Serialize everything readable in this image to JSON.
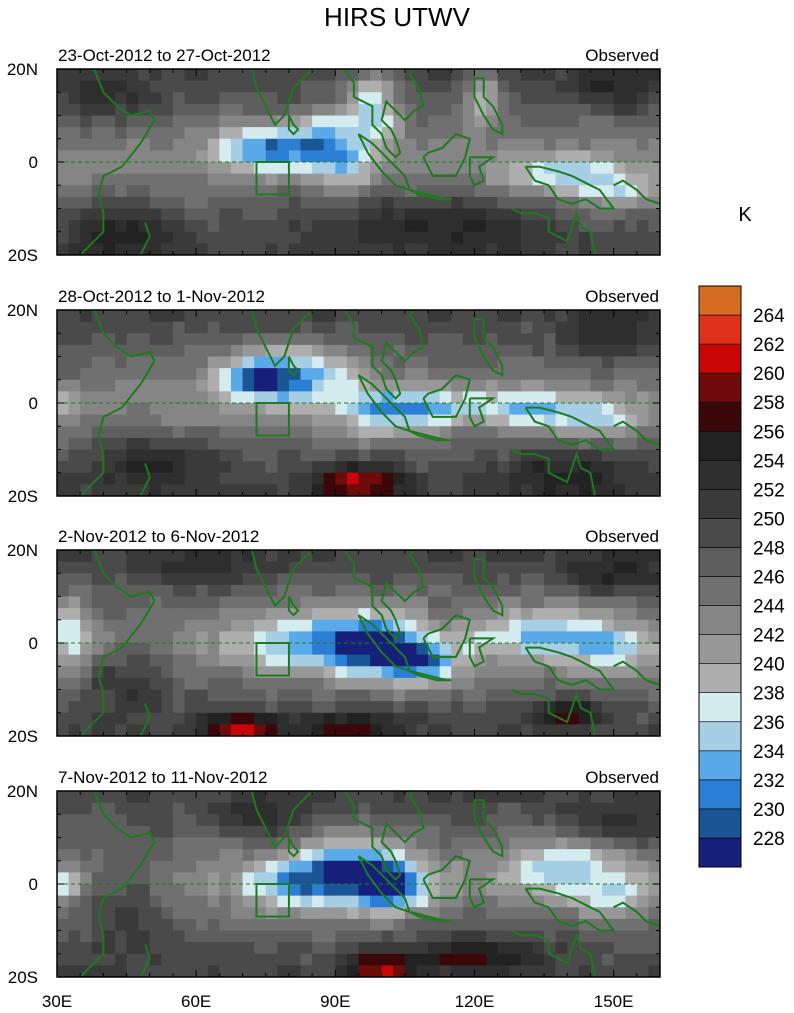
{
  "figure": {
    "title": "HIRS UTWV",
    "units": "K"
  },
  "chart_data": {
    "type": "heatmap",
    "title": "HIRS UTWV",
    "x_ticks": [
      "30E",
      "60E",
      "90E",
      "120E",
      "150E"
    ],
    "x_tick_values": [
      30,
      60,
      90,
      120,
      150
    ],
    "xlim": [
      30,
      160
    ],
    "y_ticks": [
      "20N",
      "0",
      "20S"
    ],
    "y_tick_values": [
      20,
      0,
      -20
    ],
    "ylim": [
      -20,
      20
    ],
    "box_region": {
      "lon": [
        73,
        80
      ],
      "lat": [
        -7,
        0
      ]
    },
    "equator_line": "dashed",
    "colorbar": {
      "label": "K",
      "levels": [
        228,
        230,
        232,
        234,
        236,
        238,
        240,
        242,
        244,
        246,
        248,
        250,
        252,
        254,
        256,
        258,
        260,
        262,
        264
      ],
      "level_labels": [
        "228",
        "230",
        "232",
        "234",
        "236",
        "238",
        "240",
        "242",
        "244",
        "246",
        "248",
        "250",
        "252",
        "254",
        "256",
        "258",
        "260",
        "262",
        "264"
      ],
      "colors": [
        "#16207a",
        "#1a5596",
        "#2a7fd4",
        "#5aaaea",
        "#a6cfe6",
        "#d4ecef",
        "#aeaeae",
        "#989898",
        "#858585",
        "#707070",
        "#5e5e5e",
        "#4a4a4a",
        "#3a3a3a",
        "#2e2e2e",
        "#222222",
        "#3a0808",
        "#6e0c0c",
        "#c80606",
        "#e0321a",
        "#d66c24"
      ]
    },
    "panels": [
      {
        "left_label": "23-Oct-2012 to 27-Oct-2012",
        "right_label": "Observed"
      },
      {
        "left_label": "28-Oct-2012 to 1-Nov-2012",
        "right_label": "Observed"
      },
      {
        "left_label": "2-Nov-2012 to 6-Nov-2012",
        "right_label": "Observed"
      },
      {
        "left_label": "7-Nov-2012 to 11-Nov-2012",
        "right_label": "Observed"
      }
    ]
  }
}
